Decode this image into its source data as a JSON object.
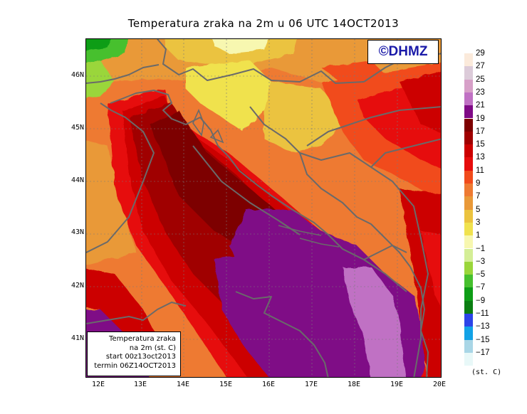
{
  "title": "Temperatura zraka na 2m u 06 UTC 14OCT2013",
  "copyright": "©DHMZ",
  "info_box": {
    "line1": "Temperatura zraka",
    "line2": "na 2m (st. C)",
    "line3": "start 00z13oct2013",
    "line4": "termin 06Z14OCT2013"
  },
  "lat_labels": [
    "46N",
    "45N",
    "44N",
    "43N",
    "42N",
    "41N"
  ],
  "lon_labels": [
    "12E",
    "13E",
    "14E",
    "15E",
    "16E",
    "17E",
    "18E",
    "19E",
    "20E"
  ],
  "legend": {
    "unit": "(st. C)",
    "labels": [
      "29",
      "27",
      "25",
      "23",
      "21",
      "19",
      "17",
      "15",
      "13",
      "11",
      "9",
      "7",
      "5",
      "3",
      "1",
      "−1",
      "−3",
      "−5",
      "−7",
      "−9",
      "−11",
      "−13",
      "−15",
      "−17"
    ],
    "colors": [
      "#fbeadb",
      "#dccbd9",
      "#d7a0c8",
      "#c071c4",
      "#7f0a86",
      "#7d0000",
      "#a00000",
      "#cc0000",
      "#e60c0c",
      "#f14b1b",
      "#ee7a32",
      "#e99938",
      "#ebc33f",
      "#f0e24e",
      "#f7f7b0",
      "#d4ee96",
      "#9ad63a",
      "#46c02e",
      "#0e9d16",
      "#0b7e12",
      "#2c44e8",
      "#12a2e6",
      "#a9d6e6",
      "#e8f8f8"
    ]
  }
}
